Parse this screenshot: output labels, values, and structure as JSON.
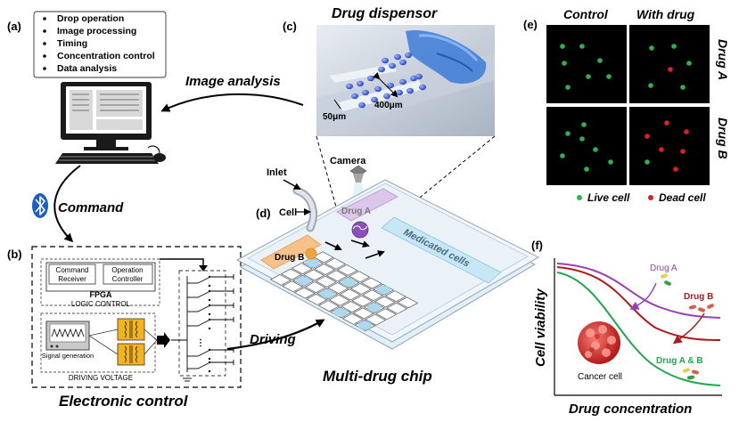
{
  "panels": {
    "a": "(a)",
    "b": "(b)",
    "c": "(c)",
    "d": "(d)",
    "e": "(e)",
    "f": "(f)"
  },
  "software_list": [
    "Drop operation",
    "Image processing",
    "Timing",
    "Concentration control",
    "Data analysis"
  ],
  "arrows": {
    "image_analysis": "Image analysis",
    "command": "Command",
    "driving": "Driving"
  },
  "electronic": {
    "title": "Electronic control",
    "command_receiver": [
      "Command",
      "Receiver"
    ],
    "operation_controller": [
      "Operation",
      "Controller"
    ],
    "fpga": "FPGA",
    "logic_control": "LOGIC CONTROL",
    "signal_generation": "Signal generation",
    "driving_voltage": "DRIVING VOLTAGE"
  },
  "dispensor": {
    "title": "Drug dispensor",
    "dim_400": "400μm",
    "dim_50": "50μm"
  },
  "chip": {
    "title": "Multi-drug chip",
    "camera": "Camera",
    "inlet": "Inlet",
    "cell": "Cell",
    "drug_a": "Drug A",
    "drug_b": "Drug B",
    "medicated": "Medicated cells"
  },
  "images": {
    "col_control": "Control",
    "col_drug": "With drug",
    "row_a": "Drug A",
    "row_b": "Drug B",
    "legend_live": "Live cell",
    "legend_dead": "Dead cell",
    "live_color": "#2db34a",
    "dead_color": "#e0201c"
  },
  "graph": {
    "ylabel": "Cell viability",
    "xlabel": "Drug concentration",
    "drug_a": "Drug A",
    "drug_b": "Drug B",
    "drug_ab": "Drug A & B",
    "cancer_cell": "Cancer cell",
    "color_a": "#9b3fb5",
    "color_b": "#b0181b",
    "color_ab": "#1fa84a"
  }
}
